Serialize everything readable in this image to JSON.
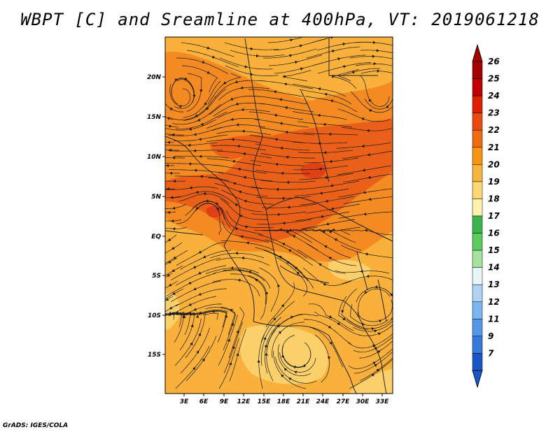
{
  "title": "WBPT [C] and Sreamline at 400hPa, VT: 2019061218",
  "credit": "GrADS: IGES/COLA",
  "map": {
    "lat_labels": [
      "20N",
      "15N",
      "10N",
      "5N",
      "EQ",
      "5S",
      "10S",
      "15S"
    ],
    "lon_labels": [
      "3E",
      "6E",
      "9E",
      "12E",
      "15E",
      "18E",
      "21E",
      "24E",
      "27E",
      "30E",
      "33E"
    ],
    "field_colors": {
      "moderate": "#f9b13b",
      "warm": "#f38a22",
      "hot": "#ea6019",
      "hottest": "#e04016",
      "cool": "#fbd06a"
    },
    "streamline_color": "#1a1a1a",
    "border_color": "#222222"
  },
  "colorbar": {
    "labels": [
      "26",
      "25",
      "24",
      "23",
      "22",
      "21",
      "20",
      "19",
      "18",
      "17",
      "16",
      "15",
      "14",
      "13",
      "12",
      "11",
      "9",
      "7"
    ],
    "colors": [
      "#a50000",
      "#c00000",
      "#dd2000",
      "#ea4a10",
      "#f06a10",
      "#f69410",
      "#f9b43c",
      "#fcd773",
      "#fdf2b0",
      "#39b54a",
      "#5ccc5c",
      "#a6e39c",
      "#e6f5f8",
      "#aed3f5",
      "#7ab6ef",
      "#5597e8",
      "#3678dc",
      "#1a55c6"
    ]
  }
}
